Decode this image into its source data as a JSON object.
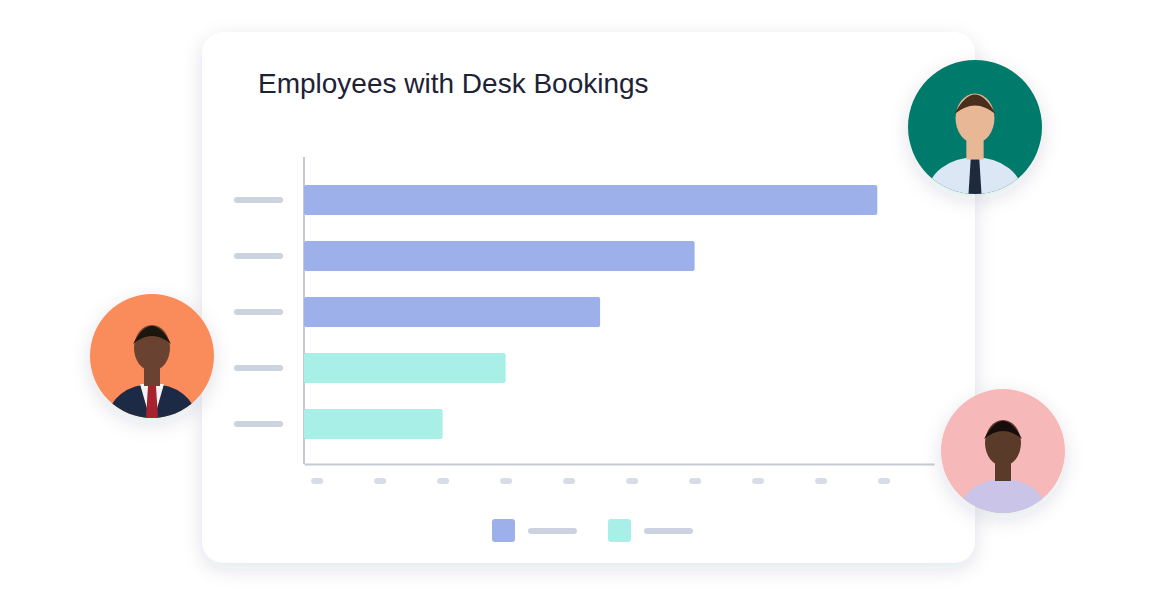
{
  "chart_data": {
    "type": "bar",
    "orientation": "horizontal",
    "title": "Employees with Desk Bookings",
    "categories": [
      null,
      null,
      null,
      null,
      null
    ],
    "values": [
      91,
      62,
      47,
      32,
      22
    ],
    "colors": [
      "#9db0ea",
      "#9db0ea",
      "#9db0ea",
      "#a8efe8",
      "#a8efe8"
    ],
    "xlim": [
      0,
      100
    ],
    "xticks": [
      2,
      12,
      22,
      32,
      42,
      52,
      62,
      72,
      82,
      92
    ],
    "legend": "bottom",
    "tick_labels": false
  }
}
